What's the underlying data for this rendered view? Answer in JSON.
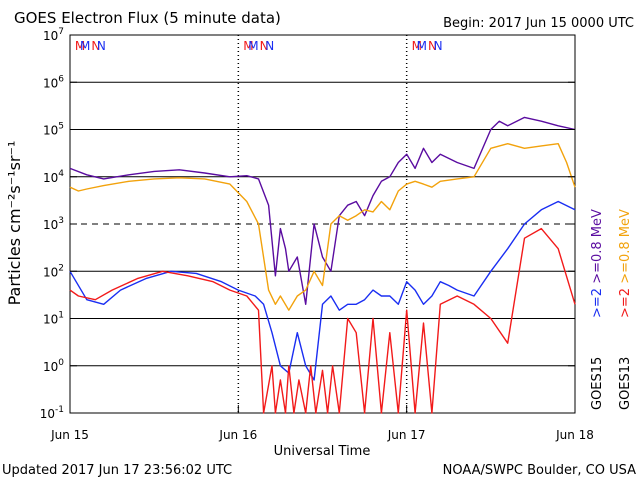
{
  "header": {
    "title": "GOES Electron Flux (5 minute data)",
    "begin": "Begin: 2017 Jun 15 0000 UTC"
  },
  "footer": {
    "updated": "Updated 2017 Jun 17 23:56:02 UTC",
    "credit": "NOAA/SWPC Boulder, CO USA"
  },
  "colors": {
    "blue": "#1a2ef2",
    "red": "#f21a1a",
    "purple": "#5a0ca0",
    "orange": "#f2a20c",
    "black": "#000000"
  },
  "chart_data": {
    "type": "line",
    "title": "GOES Electron Flux (5 minute data)",
    "xlabel": "Universal Time",
    "ylabel": "Particles cm⁻²s⁻¹sr⁻¹",
    "yscale": "log",
    "ylim": [
      0.1,
      10000000
    ],
    "xlim": [
      0,
      3
    ],
    "x_unit": "days since 2017 Jun 15 0000 UTC",
    "x_ticks": [
      {
        "x": 0,
        "label": "Jun 15"
      },
      {
        "x": 1,
        "label": "Jun 16"
      },
      {
        "x": 2,
        "label": "Jun 17"
      },
      {
        "x": 3,
        "label": "Jun 18"
      }
    ],
    "y_ticks": [
      {
        "exp": "7",
        "value": 10000000
      },
      {
        "exp": "6",
        "value": 1000000
      },
      {
        "exp": "5",
        "value": 100000
      },
      {
        "exp": "4",
        "value": 10000
      },
      {
        "exp": "3",
        "value": 1000
      },
      {
        "exp": "2",
        "value": 100
      },
      {
        "exp": "1",
        "value": 10
      },
      {
        "exp": "0",
        "value": 1
      },
      {
        "exp": "-1",
        "value": 0.1
      }
    ],
    "dashed_lines": [
      1000
    ],
    "grid": true,
    "markers": [
      {
        "day": 0,
        "items": [
          {
            "label": "M",
            "x": 0.36,
            "color": "#f21a1a"
          },
          {
            "label": "M",
            "x": 0.54,
            "color": "#1a2ef2"
          },
          {
            "label": "N",
            "x": 0.92,
            "color": "#f21a1a"
          },
          {
            "label": "N",
            "x": 1.12,
            "color": "#1a2ef2"
          }
        ]
      },
      {
        "day": 1,
        "items": [
          {
            "label": "M",
            "x": 0.36,
            "color": "#f21a1a"
          },
          {
            "label": "M",
            "x": 0.54,
            "color": "#1a2ef2"
          },
          {
            "label": "N",
            "x": 0.92,
            "color": "#f21a1a"
          },
          {
            "label": "N",
            "x": 1.12,
            "color": "#1a2ef2"
          }
        ]
      },
      {
        "day": 2,
        "items": [
          {
            "label": "M",
            "x": 0.36,
            "color": "#f21a1a"
          },
          {
            "label": "M",
            "x": 0.54,
            "color": "#1a2ef2"
          },
          {
            "label": "N",
            "x": 0.92,
            "color": "#f21a1a"
          },
          {
            "label": "N",
            "x": 1.12,
            "color": "#1a2ef2"
          }
        ]
      }
    ],
    "legend": {
      "placement": "right",
      "columns": [
        {
          "satellite": "GOES15",
          "items": [
            {
              "label": ">=2",
              "color": "#1a2ef2"
            },
            {
              "label": ">=0.8 MeV",
              "color": "#5a0ca0"
            }
          ]
        },
        {
          "satellite": "GOES13",
          "items": [
            {
              "label": ">=2",
              "color": "#f21a1a"
            },
            {
              "label": ">=0.8 MeV",
              "color": "#f2a20c"
            }
          ]
        }
      ]
    },
    "series": [
      {
        "name": "GOES15 >=0.8 MeV",
        "color": "#5a0ca0",
        "x": [
          0,
          0.1,
          0.2,
          0.35,
          0.5,
          0.65,
          0.8,
          0.95,
          1.05,
          1.12,
          1.18,
          1.22,
          1.25,
          1.28,
          1.3,
          1.35,
          1.4,
          1.45,
          1.5,
          1.55,
          1.6,
          1.65,
          1.7,
          1.75,
          1.8,
          1.85,
          1.9,
          1.95,
          2.0,
          2.05,
          2.1,
          2.15,
          2.2,
          2.3,
          2.4,
          2.5,
          2.55,
          2.6,
          2.7,
          2.8,
          2.9,
          3.0
        ],
        "y": [
          15000,
          11000,
          9000,
          11000,
          13000,
          14000,
          12000,
          10000,
          10500,
          9000,
          2500,
          80,
          800,
          300,
          100,
          200,
          20,
          1000,
          200,
          100,
          1500,
          2500,
          3000,
          1500,
          4000,
          8000,
          10000,
          20000,
          30000,
          15000,
          40000,
          20000,
          30000,
          20000,
          15000,
          100000,
          150000,
          120000,
          180000,
          150000,
          120000,
          100000
        ]
      },
      {
        "name": "GOES13 >=0.8 MeV",
        "color": "#f2a20c",
        "x": [
          0,
          0.05,
          0.1,
          0.2,
          0.35,
          0.5,
          0.65,
          0.8,
          0.95,
          1.05,
          1.12,
          1.18,
          1.22,
          1.25,
          1.3,
          1.35,
          1.4,
          1.45,
          1.5,
          1.55,
          1.6,
          1.65,
          1.7,
          1.75,
          1.8,
          1.85,
          1.9,
          1.95,
          2.0,
          2.05,
          2.1,
          2.15,
          2.2,
          2.3,
          2.4,
          2.5,
          2.6,
          2.7,
          2.8,
          2.9,
          2.95,
          3.0
        ],
        "y": [
          6000,
          5000,
          5500,
          6500,
          8000,
          9000,
          9500,
          9000,
          7000,
          3000,
          1000,
          40,
          20,
          30,
          15,
          30,
          40,
          100,
          50,
          1000,
          1500,
          1200,
          1500,
          2000,
          1800,
          3000,
          2000,
          5000,
          7000,
          8000,
          7000,
          6000,
          8000,
          9000,
          10000,
          40000,
          50000,
          40000,
          45000,
          50000,
          20000,
          6000
        ]
      },
      {
        "name": "GOES15 >=2",
        "color": "#1a2ef2",
        "x": [
          0,
          0.1,
          0.2,
          0.3,
          0.45,
          0.6,
          0.75,
          0.9,
          1.0,
          1.1,
          1.15,
          1.2,
          1.25,
          1.3,
          1.35,
          1.4,
          1.45,
          1.5,
          1.55,
          1.6,
          1.65,
          1.7,
          1.75,
          1.8,
          1.85,
          1.9,
          1.95,
          2.0,
          2.05,
          2.1,
          2.15,
          2.2,
          2.25,
          2.3,
          2.4,
          2.5,
          2.6,
          2.7,
          2.8,
          2.9,
          3.0
        ],
        "y": [
          100,
          25,
          20,
          40,
          70,
          100,
          90,
          60,
          40,
          30,
          20,
          5,
          1,
          0.7,
          5,
          1,
          0.5,
          20,
          30,
          15,
          20,
          20,
          25,
          40,
          30,
          30,
          20,
          60,
          40,
          20,
          30,
          60,
          50,
          40,
          30,
          100,
          300,
          1000,
          2000,
          3000,
          2000
        ]
      },
      {
        "name": "GOES13 >=2",
        "color": "#f21a1a",
        "x": [
          0,
          0.05,
          0.15,
          0.25,
          0.4,
          0.55,
          0.7,
          0.85,
          0.95,
          1.05,
          1.12,
          1.15,
          1.2,
          1.22,
          1.25,
          1.28,
          1.3,
          1.33,
          1.36,
          1.4,
          1.43,
          1.46,
          1.5,
          1.53,
          1.56,
          1.6,
          1.65,
          1.7,
          1.75,
          1.8,
          1.85,
          1.9,
          1.95,
          2.0,
          2.05,
          2.1,
          2.15,
          2.2,
          2.3,
          2.4,
          2.5,
          2.6,
          2.7,
          2.8,
          2.9,
          3.0
        ],
        "y": [
          40,
          30,
          25,
          40,
          70,
          100,
          80,
          60,
          40,
          30,
          15,
          0.1,
          1,
          0.1,
          0.5,
          0.1,
          1,
          0.1,
          0.5,
          0.1,
          1,
          0.1,
          0.8,
          0.1,
          1,
          0.1,
          10,
          5,
          0.1,
          10,
          0.1,
          5,
          0.1,
          15,
          0.1,
          8,
          0.1,
          20,
          30,
          20,
          10,
          3,
          500,
          800,
          300,
          20
        ]
      }
    ]
  }
}
